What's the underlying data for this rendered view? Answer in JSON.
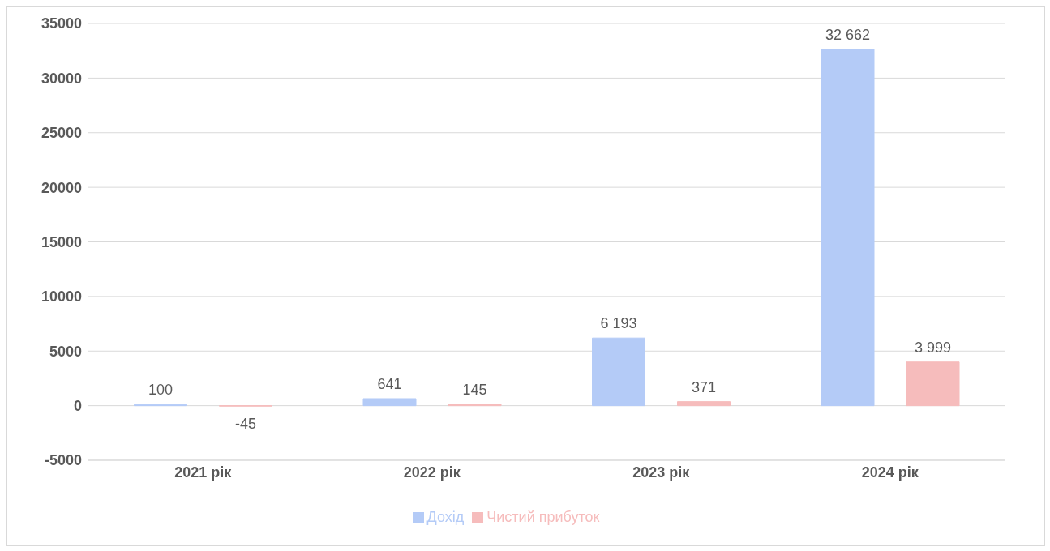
{
  "chart_data": {
    "type": "bar",
    "categories": [
      "2021 рік",
      "2022 рік",
      "2023 рік",
      "2024 рік"
    ],
    "series": [
      {
        "name": "Дохід",
        "color": "#b4cbf7",
        "values": [
          100,
          641,
          6193,
          32662
        ],
        "value_labels": [
          "100",
          "641",
          "6 193",
          "32 662"
        ]
      },
      {
        "name": "Чистий прибуток",
        "color": "#f6bcbc",
        "values": [
          -45,
          145,
          371,
          3999
        ],
        "value_labels": [
          "-45",
          "145",
          "371",
          "3 999"
        ]
      }
    ],
    "ylim": [
      -5000,
      35000
    ],
    "yticks": [
      -5000,
      0,
      5000,
      10000,
      15000,
      20000,
      25000,
      30000,
      35000
    ],
    "grid": "y",
    "legend": "bottom"
  }
}
